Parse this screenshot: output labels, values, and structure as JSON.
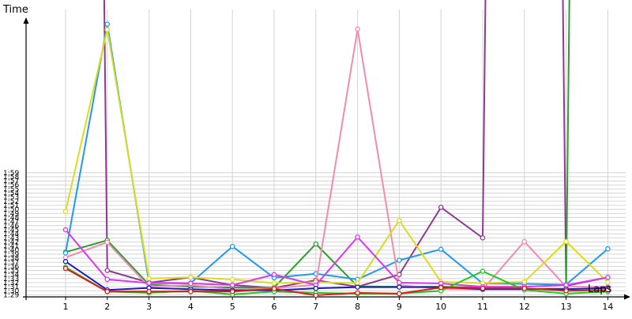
{
  "chart_data": {
    "type": "line",
    "ylabel": "Time",
    "xlabel": "Laps",
    "x": [
      1,
      2,
      3,
      4,
      5,
      6,
      7,
      8,
      9,
      10,
      11,
      12,
      13,
      14
    ],
    "y_ticks": [
      "1:29",
      "1:30",
      "1:31",
      "1:32",
      "1:33",
      "1:34",
      "1:35",
      "1:36",
      "1:37",
      "1:38",
      "1:39",
      "1:40",
      "1:41",
      "1:42",
      "1:43",
      "1:44",
      "1:45",
      "1:46",
      "1:47",
      "1:48",
      "1:49",
      "1:50",
      "1:51",
      "1:52",
      "1:53",
      "1:54",
      "1:55",
      "1:56",
      "1:57",
      "1:58",
      "1:59"
    ],
    "ylim_seconds": [
      88.5,
      159.5
    ],
    "grid": true,
    "legend": "none",
    "series": [
      {
        "color": "#8B3A8F",
        "values": [
          999,
          95,
          92,
          93.3,
          91.4,
          90.7,
          92.6,
          91.0,
          94.0,
          110.5,
          103,
          999,
          91.2,
          93.3
        ]
      },
      {
        "color": "#2E9E2E",
        "values": [
          99.5,
          102.4,
          91.5,
          91.0,
          90.8,
          90.8,
          101.5,
          91.1,
          91.0,
          91.0,
          90.8,
          90.5,
          90.5,
          999
        ]
      },
      {
        "color": "#1F9BE8",
        "values": [
          99.3,
          155.5,
          92.0,
          91.9,
          100.9,
          93.2,
          94.2,
          92.8,
          97.5,
          100.2,
          91.8,
          91.7,
          91.5,
          100.3
        ]
      },
      {
        "color": "#F08CB0",
        "values": [
          98.2,
          101.9,
          91.0,
          91.4,
          90.3,
          90.6,
          91.5,
          154.3,
          91.4,
          90.5,
          90.3,
          102.1,
          91.0,
          91.0
        ]
      },
      {
        "color": "#DCDC1E",
        "values": [
          109.5,
          154.2,
          93.0,
          93.3,
          92.8,
          91.9,
          92.1,
          91.9,
          107.3,
          92.2,
          91.9,
          92.2,
          102.1,
          92.1
        ]
      },
      {
        "color": "#D838F0",
        "values": [
          105.0,
          92.8,
          91.9,
          91.8,
          91.4,
          94.0,
          91.4,
          103.2,
          92.0,
          91.8,
          91.0,
          91.0,
          91.4,
          93.3
        ]
      },
      {
        "color": "#1818C8",
        "values": [
          97.2,
          90.2,
          90.7,
          90.4,
          90.1,
          90.1,
          90.6,
          90.9,
          90.9,
          90.9,
          90.4,
          90.4,
          90.4,
          90.7
        ]
      },
      {
        "color": "#20C820",
        "values": [
          95.8,
          89.8,
          89.5,
          90.0,
          89.1,
          89.8,
          89.5,
          89.3,
          89.3,
          90.0,
          94.8,
          90.2,
          89.3,
          89.8
        ]
      },
      {
        "color": "#E01818",
        "values": [
          95.5,
          89.8,
          89.8,
          89.8,
          89.8,
          90.5,
          88.9,
          89.5,
          89.3,
          90.8,
          90.6,
          90.6,
          90.0,
          90.2
        ]
      }
    ]
  }
}
